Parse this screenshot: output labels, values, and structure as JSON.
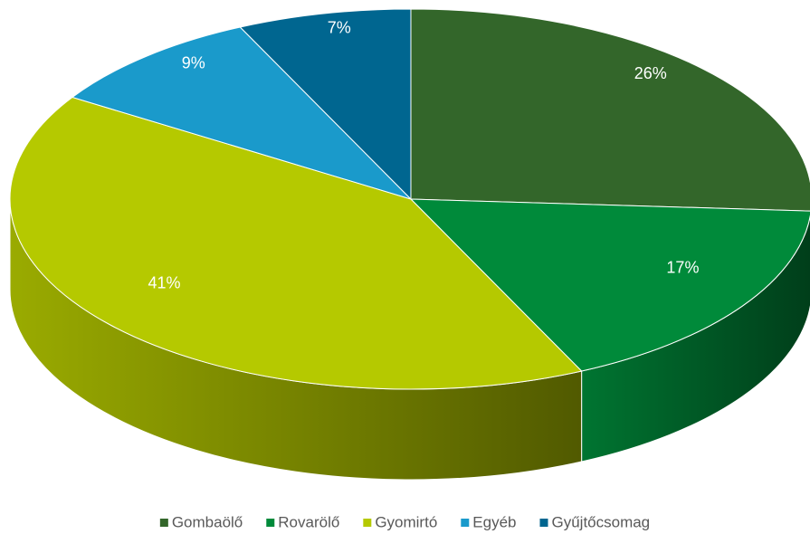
{
  "chart_data": {
    "type": "pie",
    "categories": [
      "Gombaölő",
      "Rovarölő",
      "Gyomirtó",
      "Egyéb",
      "Gyűjtőcsomag"
    ],
    "values": [
      26,
      17,
      41,
      9,
      7
    ],
    "value_labels": [
      "26%",
      "17%",
      "41%",
      "9%",
      "7%"
    ],
    "colors": [
      "#33662a",
      "#008a3a",
      "#b5c900",
      "#1a9acb",
      "#006690"
    ],
    "legend": "bottom"
  }
}
